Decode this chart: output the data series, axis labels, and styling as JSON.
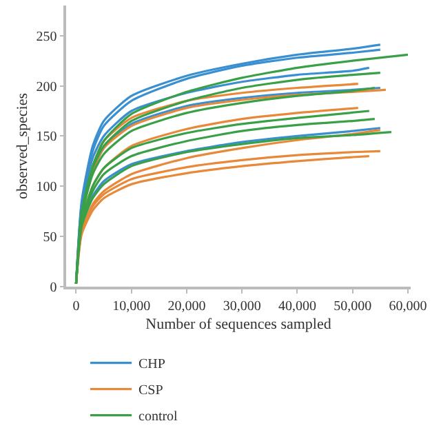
{
  "chart_data": {
    "type": "line",
    "xlabel": "Number of sequences sampled",
    "ylabel": "observed_species",
    "xlim": [
      -1800,
      60500
    ],
    "ylim": [
      0,
      280
    ],
    "xticks": [
      0,
      {
        "value": 10000,
        "label": "10,000"
      },
      {
        "value": 20000,
        "label": "20,000"
      },
      {
        "value": 30000,
        "label": "30,000"
      },
      {
        "value": 40000,
        "label": "40,000"
      },
      {
        "value": 50000,
        "label": "50,000"
      },
      {
        "value": 60000,
        "label": "60,000"
      }
    ],
    "yticks": [
      0,
      50,
      100,
      150,
      200,
      250
    ],
    "legend": "bottom",
    "marker": "none",
    "line_style": "solid",
    "series": [
      {
        "name": "CHP",
        "color": "#3a8fd0",
        "x": [
          0,
          1000,
          3000,
          5000,
          10000,
          20000,
          30000,
          40000,
          50000,
          55000
        ],
        "values": [
          3,
          85,
          140,
          165,
          190,
          210,
          222,
          231,
          237,
          241
        ]
      },
      {
        "color": "#3a8fd0",
        "x": [
          0,
          1000,
          3000,
          5000,
          10000,
          20000,
          30000,
          40000,
          50000,
          55000
        ],
        "values": [
          3,
          82,
          135,
          160,
          185,
          207,
          220,
          228,
          233,
          236
        ]
      },
      {
        "color": "#3a8fd0",
        "x": [
          0,
          1000,
          3000,
          5000,
          10000,
          20000,
          30000,
          40000,
          50000,
          53000
        ],
        "values": [
          3,
          78,
          128,
          150,
          175,
          193,
          204,
          211,
          215,
          218
        ]
      },
      {
        "color": "#3a8fd0",
        "x": [
          0,
          1000,
          3000,
          5000,
          10000,
          20000,
          30000,
          40000,
          50000,
          55000
        ],
        "values": [
          3,
          72,
          115,
          138,
          162,
          180,
          188,
          193,
          196,
          198
        ]
      },
      {
        "color": "#3a8fd0",
        "x": [
          0,
          1000,
          3000,
          5000,
          10000,
          20000,
          30000,
          40000,
          50000,
          55000
        ],
        "values": [
          3,
          60,
          90,
          105,
          122,
          135,
          144,
          150,
          155,
          158
        ]
      },
      {
        "name": "CSP",
        "color": "#e8893a",
        "x": [
          0,
          1000,
          3000,
          5000,
          10000,
          20000,
          30000,
          40000,
          51000
        ],
        "values": [
          3,
          70,
          120,
          145,
          168,
          185,
          193,
          198,
          202
        ]
      },
      {
        "color": "#e8893a",
        "x": [
          0,
          1000,
          3000,
          5000,
          10000,
          20000,
          30000,
          40000,
          50000,
          56000
        ],
        "values": [
          3,
          68,
          115,
          138,
          160,
          178,
          186,
          191,
          194,
          196
        ]
      },
      {
        "color": "#e8893a",
        "x": [
          0,
          1000,
          3000,
          5000,
          10000,
          20000,
          30000,
          40000,
          51000
        ],
        "values": [
          3,
          62,
          100,
          118,
          140,
          157,
          167,
          173,
          178
        ]
      },
      {
        "color": "#e8893a",
        "x": [
          0,
          1000,
          3000,
          5000,
          10000,
          20000,
          30000,
          40000,
          50000,
          55000
        ],
        "values": [
          3,
          55,
          82,
          95,
          112,
          128,
          138,
          146,
          152,
          156
        ]
      },
      {
        "color": "#e8893a",
        "x": [
          0,
          1000,
          3000,
          5000,
          10000,
          20000,
          30000,
          40000,
          50000,
          55000
        ],
        "values": [
          3,
          55,
          80,
          92,
          107,
          119,
          126,
          131,
          134,
          135
        ]
      },
      {
        "color": "#e8893a",
        "x": [
          0,
          1000,
          3000,
          5000,
          10000,
          20000,
          30000,
          40000,
          50000,
          53000
        ],
        "values": [
          3,
          52,
          76,
          88,
          102,
          113,
          120,
          125,
          129,
          130
        ]
      },
      {
        "name": "control",
        "color": "#3aa047",
        "x": [
          0,
          1000,
          3000,
          5000,
          10000,
          20000,
          30000,
          40000,
          50000,
          60000
        ],
        "values": [
          3,
          75,
          120,
          145,
          172,
          194,
          208,
          218,
          225,
          231
        ]
      },
      {
        "color": "#3aa047",
        "x": [
          0,
          1000,
          3000,
          5000,
          10000,
          20000,
          30000,
          40000,
          50000,
          55000
        ],
        "values": [
          3,
          72,
          118,
          140,
          165,
          185,
          198,
          206,
          211,
          213
        ]
      },
      {
        "color": "#3aa047",
        "x": [
          0,
          1000,
          3000,
          5000,
          10000,
          20000,
          30000,
          40000,
          50000,
          54000
        ],
        "values": [
          3,
          70,
          112,
          132,
          155,
          173,
          183,
          190,
          195,
          198
        ]
      },
      {
        "color": "#3aa047",
        "x": [
          0,
          1000,
          3000,
          5000,
          10000,
          20000,
          30000,
          40000,
          53000
        ],
        "values": [
          3,
          65,
          100,
          118,
          138,
          153,
          162,
          168,
          175
        ]
      },
      {
        "color": "#3aa047",
        "x": [
          0,
          1000,
          3000,
          5000,
          10000,
          20000,
          30000,
          40000,
          50000,
          54000
        ],
        "values": [
          3,
          62,
          95,
          112,
          130,
          145,
          155,
          161,
          165,
          167
        ]
      },
      {
        "color": "#3aa047",
        "x": [
          0,
          1000,
          3000,
          5000,
          10000,
          20000,
          30000,
          40000,
          50000,
          57000
        ],
        "values": [
          3,
          60,
          88,
          102,
          120,
          134,
          142,
          148,
          151,
          154
        ]
      }
    ]
  }
}
